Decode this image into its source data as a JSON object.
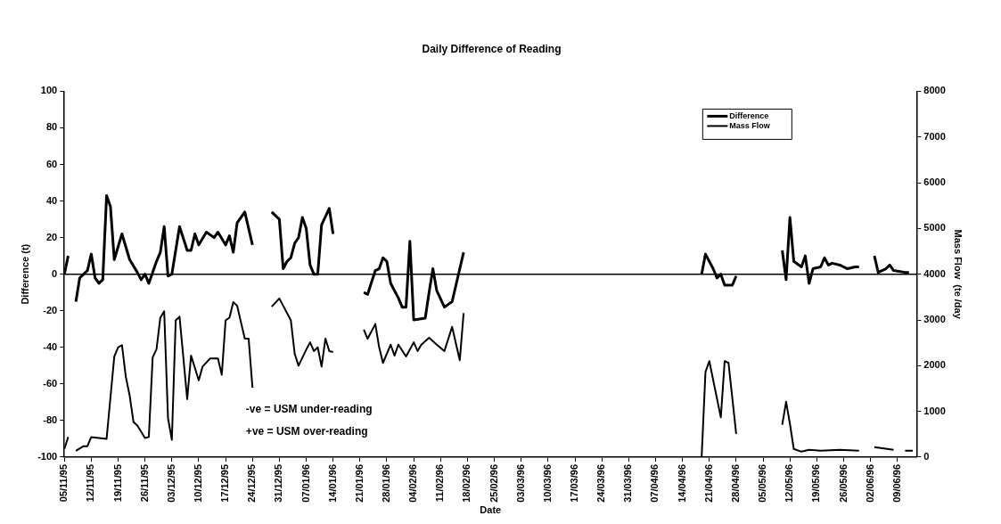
{
  "chart_data": {
    "type": "line",
    "title": "Daily Difference of Reading",
    "xlabel": "Date",
    "ylabel": "Difference (t)",
    "y2label": "Mass Flow  (te /day",
    "xlim": [
      "1995-11-05",
      "1996-06-14"
    ],
    "xticks": [
      {
        "value": "1995-11-05",
        "label": "05/11/95"
      },
      {
        "value": "1995-11-12",
        "label": "12/11/95"
      },
      {
        "value": "1995-11-19",
        "label": "19/11/95"
      },
      {
        "value": "1995-11-26",
        "label": "26/11/95"
      },
      {
        "value": "1995-12-03",
        "label": "03/12/95"
      },
      {
        "value": "1995-12-10",
        "label": "10/12/95"
      },
      {
        "value": "1995-12-17",
        "label": "17/12/95"
      },
      {
        "value": "1995-12-24",
        "label": "24/12/95"
      },
      {
        "value": "1995-12-31",
        "label": "31/12/95"
      },
      {
        "value": "1996-01-07",
        "label": "07/01/96"
      },
      {
        "value": "1996-01-14",
        "label": "14/01/96"
      },
      {
        "value": "1996-01-21",
        "label": "21/01/96"
      },
      {
        "value": "1996-01-28",
        "label": "28/01/96"
      },
      {
        "value": "1996-02-04",
        "label": "04/02/96"
      },
      {
        "value": "1996-02-11",
        "label": "11/02/96"
      },
      {
        "value": "1996-02-18",
        "label": "18/02/96"
      },
      {
        "value": "1996-02-25",
        "label": "25/02/96"
      },
      {
        "value": "1996-03-03",
        "label": "03/03/96"
      },
      {
        "value": "1996-03-10",
        "label": "10/03/96"
      },
      {
        "value": "1996-03-17",
        "label": "17/03/96"
      },
      {
        "value": "1996-03-24",
        "label": "24/03/96"
      },
      {
        "value": "1996-03-31",
        "label": "31/03/96"
      },
      {
        "value": "1996-04-07",
        "label": "07/04/96"
      },
      {
        "value": "1996-04-14",
        "label": "14/04/96"
      },
      {
        "value": "1996-04-21",
        "label": "21/04/96"
      },
      {
        "value": "1996-04-28",
        "label": "28/04/96"
      },
      {
        "value": "1996-05-05",
        "label": "05/05/96"
      },
      {
        "value": "1996-05-12",
        "label": "12/05/96"
      },
      {
        "value": "1996-05-19",
        "label": "19/05/96"
      },
      {
        "value": "1996-05-26",
        "label": "26/05/96"
      },
      {
        "value": "1996-06-02",
        "label": "02/06/96"
      },
      {
        "value": "1996-06-09",
        "label": "09/06/96"
      }
    ],
    "ylim": [
      -100,
      100
    ],
    "yticks": [
      -100,
      -80,
      -60,
      -40,
      -20,
      0,
      20,
      40,
      60,
      80,
      100
    ],
    "y2lim": [
      0,
      8000
    ],
    "y2ticks": [
      0,
      1000,
      2000,
      3000,
      4000,
      5000,
      6000,
      7000,
      8000
    ],
    "grid": false,
    "legend": "top right",
    "marker": "none",
    "line_style": "solid",
    "ref_lines": [
      {
        "axis": "y",
        "value": 0,
        "color": "#000000"
      }
    ],
    "annotations": [
      "-ve = USM under-reading",
      "+ve = USM over-reading"
    ],
    "series": [
      {
        "name": "Difference",
        "color": "#000000",
        "x": [
          "1995-11-05",
          "1995-11-06",
          "1995-11-07",
          "1995-11-08",
          "1995-11-09",
          "1995-11-11",
          "1995-11-12",
          "1995-11-13",
          "1995-11-14",
          "1995-11-15",
          "1995-11-16",
          "1995-11-17",
          "1995-11-18",
          "1995-11-20",
          "1995-11-22",
          "1995-11-24",
          "1995-11-25",
          "1995-11-26",
          "1995-11-27",
          "1995-11-29",
          "1995-11-30",
          "1995-12-01",
          "1995-12-02",
          "1995-12-03",
          "1995-12-05",
          "1995-12-07",
          "1995-12-08",
          "1995-12-09",
          "1995-12-10",
          "1995-12-12",
          "1995-12-14",
          "1995-12-15",
          "1995-12-17",
          "1995-12-18",
          "1995-12-19",
          "1995-12-20",
          "1995-12-22",
          "1995-12-24",
          "1995-12-26",
          "1995-12-29",
          "1995-12-31",
          "1996-01-01",
          "1996-01-02",
          "1996-01-03",
          "1996-01-04",
          "1996-01-05",
          "1996-01-06",
          "1996-01-07",
          "1996-01-08",
          "1996-01-09",
          "1996-01-10",
          "1996-01-11",
          "1996-01-13",
          "1996-01-14",
          "1996-01-17",
          "1996-01-22",
          "1996-01-23",
          "1996-01-25",
          "1996-01-26",
          "1996-01-27",
          "1996-01-28",
          "1996-01-29",
          "1996-01-31",
          "1996-02-01",
          "1996-02-02",
          "1996-02-03",
          "1996-02-04",
          "1996-02-07",
          "1996-02-08",
          "1996-02-09",
          "1996-02-10",
          "1996-02-12",
          "1996-02-14",
          "1996-02-17",
          "1996-03-14",
          "1996-04-19",
          "1996-04-20",
          "1996-04-22",
          "1996-04-23",
          "1996-04-24",
          "1996-04-25",
          "1996-04-27",
          "1996-04-28",
          "1996-05-03",
          "1996-05-10",
          "1996-05-11",
          "1996-05-12",
          "1996-05-13",
          "1996-05-15",
          "1996-05-16",
          "1996-05-17",
          "1996-05-18",
          "1996-05-20",
          "1996-05-21",
          "1996-05-22",
          "1996-05-23",
          "1996-05-25",
          "1996-05-27",
          "1996-05-29",
          "1996-05-30",
          "1996-06-01",
          "1996-06-03",
          "1996-06-04",
          "1996-06-05",
          "1996-06-06",
          "1996-06-07",
          "1996-06-08",
          "1996-06-11",
          "1996-06-12"
        ],
        "values": [
          0,
          10,
          null,
          -15,
          -2,
          2,
          11,
          -2,
          -5,
          -3,
          43,
          37,
          8,
          22,
          8,
          1,
          -3,
          0,
          -5,
          7,
          12,
          26,
          -1,
          0,
          26,
          13,
          13,
          22,
          16,
          23,
          20,
          23,
          16,
          21,
          12,
          28,
          34,
          16,
          null,
          34,
          30,
          3,
          7,
          9,
          17,
          20,
          31,
          25,
          5,
          0,
          0,
          27,
          36,
          22,
          null,
          -10,
          -11,
          2,
          3,
          9,
          7,
          -5,
          -13,
          -18,
          -18,
          18,
          -25,
          -24,
          -10,
          3,
          -9,
          -18,
          -15,
          12,
          null,
          0,
          11,
          3,
          -2,
          0,
          -6,
          -6,
          -1,
          null,
          13,
          -3,
          31,
          7,
          4,
          10,
          -5,
          3,
          4,
          9,
          5,
          6,
          5,
          3,
          4,
          4,
          null,
          10,
          1,
          2,
          3,
          5,
          2,
          1,
          1
        ]
      },
      {
        "name": "Mass Flow",
        "color": "#000000",
        "axis": "y2",
        "x": [
          "1995-11-05",
          "1995-11-06",
          "1995-11-07",
          "1995-11-08",
          "1995-11-10",
          "1995-11-11",
          "1995-11-12",
          "1995-11-16",
          "1995-11-17",
          "1995-11-18",
          "1995-11-19",
          "1995-11-20",
          "1995-11-21",
          "1995-11-22",
          "1995-11-23",
          "1995-11-24",
          "1995-11-26",
          "1995-11-27",
          "1995-11-28",
          "1995-11-29",
          "1995-11-30",
          "1995-12-01",
          "1995-12-02",
          "1995-12-03",
          "1995-12-04",
          "1995-12-05",
          "1995-12-07",
          "1995-12-08",
          "1995-12-10",
          "1995-12-11",
          "1995-12-13",
          "1995-12-15",
          "1995-12-16",
          "1995-12-17",
          "1995-12-18",
          "1995-12-19",
          "1995-12-20",
          "1995-12-22",
          "1995-12-23",
          "1995-12-24",
          "1995-12-26",
          "1995-12-29",
          "1995-12-31",
          "1996-01-01",
          "1996-01-03",
          "1996-01-04",
          "1996-01-05",
          "1996-01-07",
          "1996-01-08",
          "1996-01-09",
          "1996-01-10",
          "1996-01-11",
          "1996-01-12",
          "1996-01-13",
          "1996-01-14",
          "1996-01-17",
          "1996-01-22",
          "1996-01-23",
          "1996-01-25",
          "1996-01-26",
          "1996-01-27",
          "1996-01-29",
          "1996-01-30",
          "1996-01-31",
          "1996-02-02",
          "1996-02-04",
          "1996-02-05",
          "1996-02-06",
          "1996-02-08",
          "1996-02-10",
          "1996-02-12",
          "1996-02-14",
          "1996-02-16",
          "1996-02-17",
          "1996-03-14",
          "1996-04-19",
          "1996-04-20",
          "1996-04-21",
          "1996-04-24",
          "1996-04-25",
          "1996-04-26",
          "1996-04-28",
          "1996-05-03",
          "1996-05-10",
          "1996-05-11",
          "1996-05-12",
          "1996-05-13",
          "1996-05-15",
          "1996-05-17",
          "1996-05-20",
          "1996-05-25",
          "1996-05-30",
          "1996-06-01",
          "1996-06-03",
          "1996-06-08",
          "1996-06-09",
          "1996-06-11",
          "1996-06-13"
        ],
        "values": [
          180,
          440,
          null,
          140,
          240,
          240,
          440,
          400,
          1300,
          2200,
          2400,
          2450,
          1760,
          1350,
          770,
          690,
          420,
          440,
          2180,
          2360,
          3050,
          3190,
          850,
          380,
          2990,
          3070,
          1270,
          2220,
          1680,
          1980,
          2160,
          2160,
          1800,
          2990,
          3050,
          3390,
          3310,
          2590,
          2590,
          1520,
          null,
          3290,
          3470,
          3310,
          2990,
          2260,
          2000,
          2350,
          2510,
          2320,
          2400,
          1980,
          2590,
          2320,
          2300,
          null,
          2790,
          2590,
          2910,
          2400,
          2060,
          2460,
          2220,
          2460,
          2200,
          2510,
          2320,
          2460,
          2610,
          2460,
          2320,
          2850,
          2120,
          3150,
          null,
          0,
          1860,
          2100,
          870,
          2100,
          2060,
          510,
          null,
          710,
          1210,
          730,
          180,
          120,
          160,
          140,
          160,
          140,
          null,
          220,
          160,
          null,
          140,
          140
        ]
      }
    ]
  }
}
